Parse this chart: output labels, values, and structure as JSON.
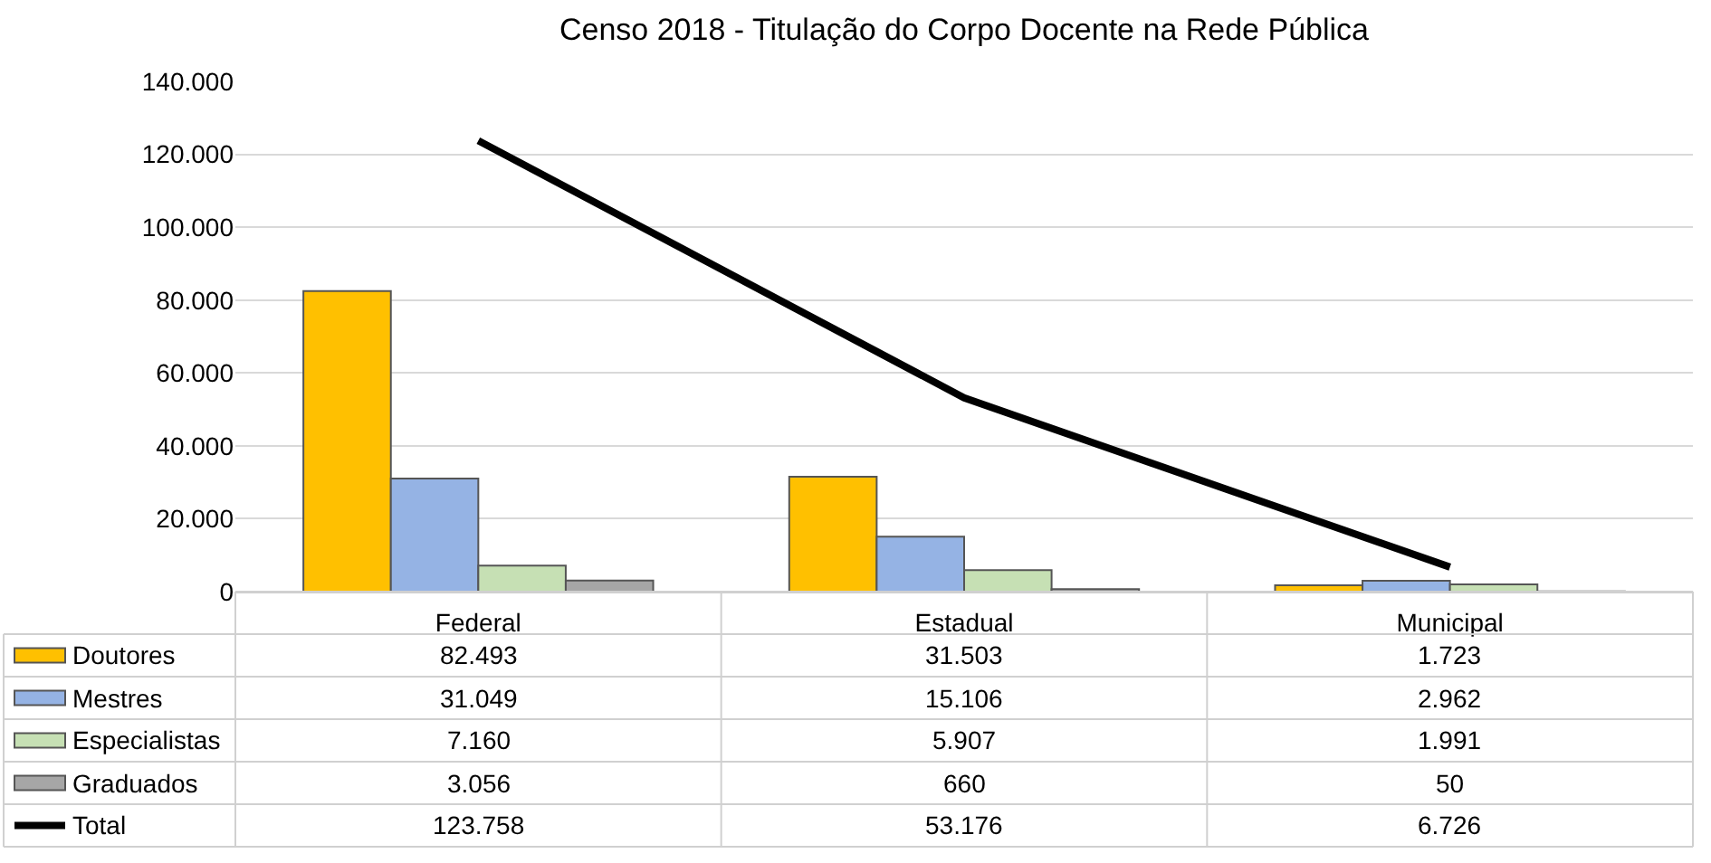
{
  "chart_data": {
    "type": "bar",
    "title": "Censo 2018 - Titulação do Corpo Docente na Rede Pública",
    "categories": [
      "Federal",
      "Estadual",
      "Municipal"
    ],
    "series": [
      {
        "name": "Doutores",
        "color": "#ffc000",
        "values": [
          82493,
          31503,
          1723
        ],
        "value_labels": [
          "82.493",
          "31.503",
          "1.723"
        ]
      },
      {
        "name": "Mestres",
        "color": "#95b3e4",
        "values": [
          31049,
          15106,
          2962
        ],
        "value_labels": [
          "31.049",
          "15.106",
          "2.962"
        ]
      },
      {
        "name": "Especialistas",
        "color": "#c6e0b4",
        "values": [
          7160,
          5907,
          1991
        ],
        "value_labels": [
          "7.160",
          "5.907",
          "1.991"
        ]
      },
      {
        "name": "Graduados",
        "color": "#a6a6a6",
        "values": [
          3056,
          660,
          50
        ],
        "value_labels": [
          "3.056",
          "660",
          "50"
        ]
      },
      {
        "name": "Total",
        "type": "line",
        "color": "#000000",
        "values": [
          123758,
          53176,
          6726
        ],
        "value_labels": [
          "123.758",
          "53.176",
          "6.726"
        ]
      }
    ],
    "ylim": [
      0,
      140000
    ],
    "yticks": [
      {
        "value": 0,
        "label": "0"
      },
      {
        "value": 20000,
        "label": "20.000"
      },
      {
        "value": 40000,
        "label": "40.000"
      },
      {
        "value": 60000,
        "label": "60.000"
      },
      {
        "value": 80000,
        "label": "80.000"
      },
      {
        "value": 100000,
        "label": "100.000"
      },
      {
        "value": 120000,
        "label": "120.000"
      },
      {
        "value": 140000,
        "label": "140.000"
      }
    ],
    "grid": "y",
    "legend": "bottom",
    "marker": "none",
    "line_style": "solid"
  }
}
